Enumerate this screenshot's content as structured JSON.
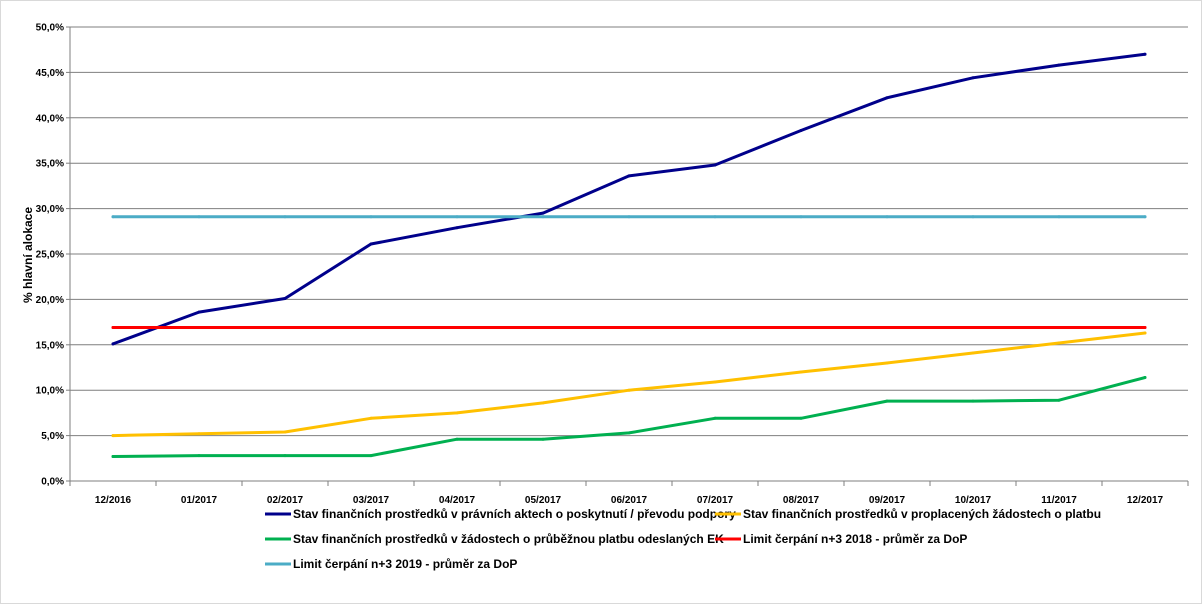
{
  "chart_data": {
    "type": "line",
    "ylabel": "% hlavní alokace",
    "xlabel": "",
    "title": "",
    "ylim": [
      0,
      50
    ],
    "yticks": [
      "0,0%",
      "5,0%",
      "10,0%",
      "15,0%",
      "20,0%",
      "25,0%",
      "30,0%",
      "35,0%",
      "40,0%",
      "45,0%",
      "50,0%"
    ],
    "grid": true,
    "legend_position": "bottom",
    "categories": [
      "12/2016",
      "01/2017",
      "02/2017",
      "03/2017",
      "04/2017",
      "05/2017",
      "06/2017",
      "07/2017",
      "08/2017",
      "09/2017",
      "10/2017",
      "11/2017",
      "12/2017"
    ],
    "series": [
      {
        "name": "Stav finančních prostředků v právních aktech o poskytnutí / převodu podpory",
        "color": "#00008B",
        "values": [
          15.1,
          18.6,
          20.1,
          26.1,
          27.9,
          29.5,
          33.6,
          34.8,
          38.6,
          42.2,
          44.4,
          45.8,
          47.0
        ]
      },
      {
        "name": "Stav finančních prostředků v proplacených žádostech o platbu",
        "color": "#FFC000",
        "values": [
          5.0,
          5.2,
          5.4,
          6.9,
          7.5,
          8.6,
          10.0,
          10.9,
          12.0,
          13.0,
          14.1,
          15.2,
          16.3
        ]
      },
      {
        "name": "Stav finančních prostředků v žádostech o průběžnou platbu odeslaných EK",
        "color": "#00B050",
        "values": [
          2.7,
          2.8,
          2.8,
          2.8,
          4.6,
          4.6,
          5.3,
          6.9,
          6.9,
          8.8,
          8.8,
          8.9,
          11.4
        ]
      },
      {
        "name": "Limit čerpání n+3 2018 - průměr za DoP",
        "color": "#FF0000",
        "values": [
          16.9,
          16.9,
          16.9,
          16.9,
          16.9,
          16.9,
          16.9,
          16.9,
          16.9,
          16.9,
          16.9,
          16.9,
          16.9
        ]
      },
      {
        "name": "Limit čerpání n+3 2019 - průměr za DoP",
        "color": "#4BACC6",
        "values": [
          29.1,
          29.1,
          29.1,
          29.1,
          29.1,
          29.1,
          29.1,
          29.1,
          29.1,
          29.1,
          29.1,
          29.1,
          29.1
        ]
      }
    ]
  }
}
